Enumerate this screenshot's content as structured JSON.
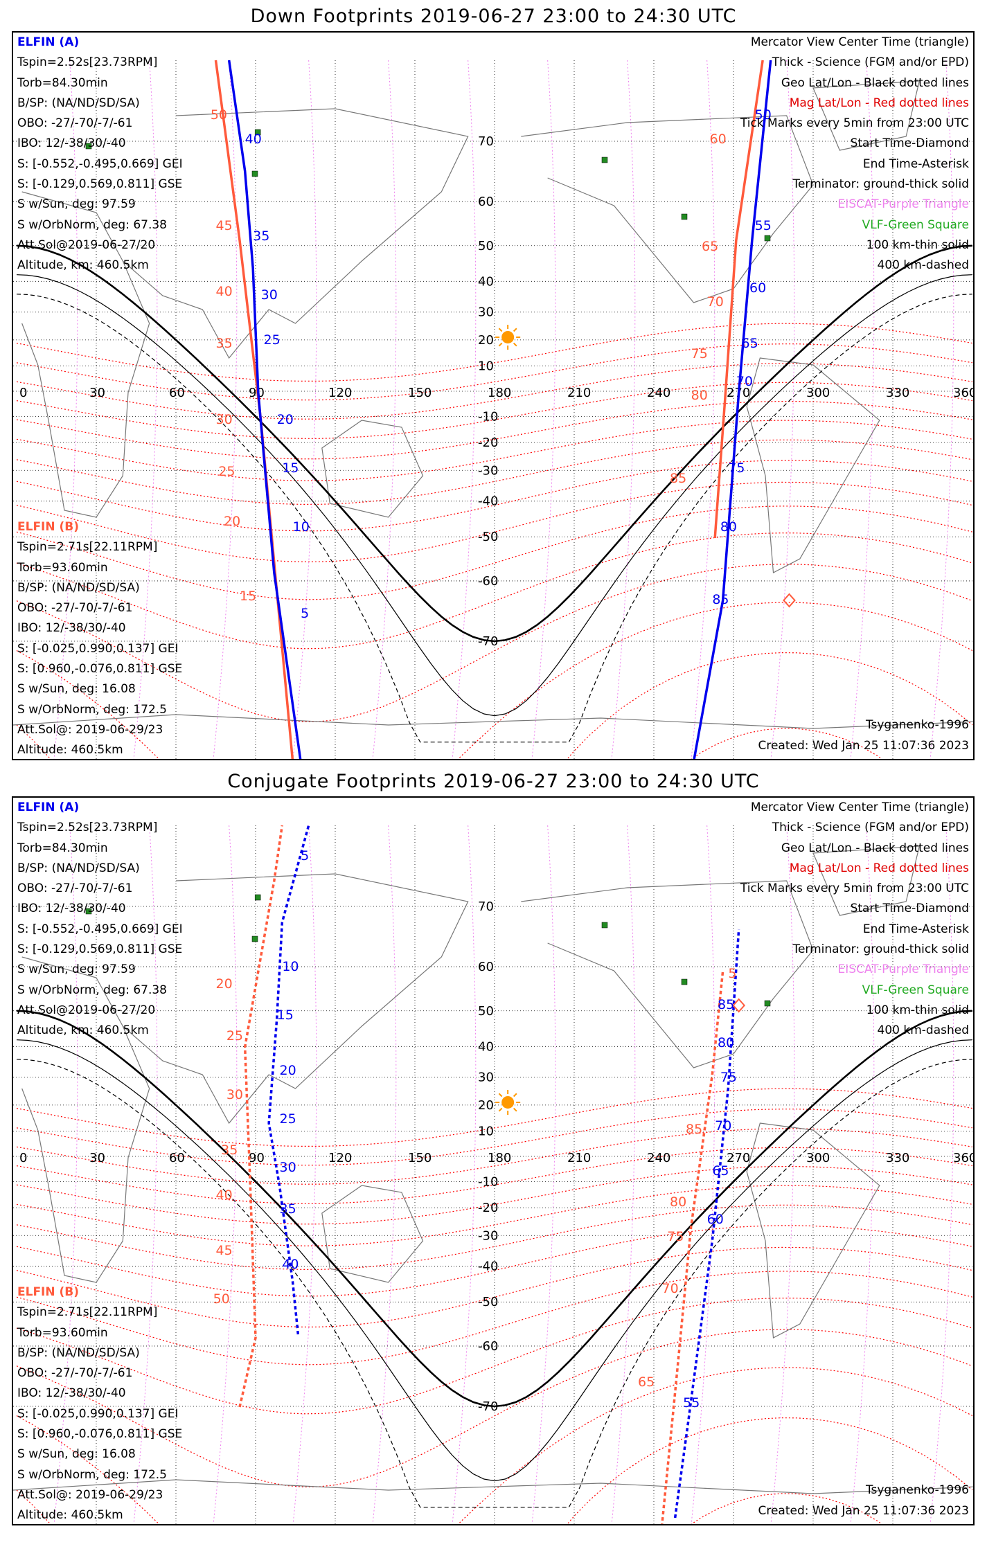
{
  "panels": [
    {
      "title": "Down Footprints 2019-06-27 23:00 to 24:30 UTC",
      "mode": "down"
    },
    {
      "title": "Conjugate Footprints 2019-06-27 23:00 to 24:30 UTC",
      "mode": "conj"
    }
  ],
  "elfin_a": {
    "name": "ELFIN (A)",
    "lines": [
      "Tspin=2.52s[23.73RPM]",
      "Torb=84.30min",
      "B/SP: (NA/ND/SD/SA)",
      "OBO: -27/-70/-7/-61",
      "IBO: 12/-38/30/-40",
      "S: [-0.552,-0.495,0.669] GEI",
      "S: [-0.129,0.569,0.811] GSE",
      "S w/Sun, deg: 97.59",
      "S w/OrbNorm, deg: 67.38",
      "Att.Sol@2019-06-27/20",
      "Altitude, km: 460.5km"
    ]
  },
  "elfin_b": {
    "name": "ELFIN (B)",
    "lines": [
      "Tspin=2.71s[22.11RPM]",
      "Torb=93.60min",
      "B/SP: (NA/ND/SD/SA)",
      "OBO: -27/-70/-7/-61",
      "IBO: 12/-38/30/-40",
      "S: [-0.025,0.990,0.137] GEI",
      "S: [0.960,-0.076,0.811] GSE",
      "S w/Sun, deg: 16.08",
      "S w/OrbNorm, deg: 172.5",
      "Att.Sol@: 2019-06-29/23",
      "Altitude: 460.5km"
    ]
  },
  "legend": {
    "l1": "Mercator View Center Time (triangle)",
    "l2": "Thick - Science (FGM and/or EPD)",
    "l3": "Geo Lat/Lon - Black dotted lines",
    "l4": "Mag Lat/Lon - Red dotted lines",
    "l5": "Tick Marks every 5min from 23:00 UTC",
    "l6": "Start Time-Diamond",
    "l7": "End Time-Asterisk",
    "l8": "Terminator: ground-thick solid",
    "l9": "EISCAT-Purple Triangle",
    "l10": "VLF-Green Square",
    "l11": "100 km-thin solid",
    "l12": "400 km-dashed"
  },
  "model": "Tsyganenko-1996",
  "created": "Created: Wed Jan 25 11:07:36 2023",
  "lon_labels": [
    "0",
    "30",
    "60",
    "90",
    "120",
    "150",
    "180",
    "210",
    "240",
    "270",
    "300",
    "330",
    "360"
  ],
  "lat_labels": [
    "70",
    "60",
    "50",
    "40",
    "30",
    "20",
    "10",
    "-10",
    "-20",
    "-30",
    "-40",
    "-50",
    "-60",
    "-70"
  ],
  "colors": {
    "elfin_a": "#0000ee",
    "elfin_b": "#ff5a3c",
    "mag_grid": "#ff0000",
    "geo_grid": "#000000",
    "eiscat": "#ee82ee",
    "vlf": "#228b22",
    "sun": "#ff9900"
  },
  "down_ticks_a": [
    "40",
    "35",
    "30",
    "25",
    "20",
    "15",
    "10",
    "5",
    "50",
    "55",
    "60",
    "65",
    "70",
    "75",
    "80",
    "85"
  ],
  "down_ticks_b": [
    "50",
    "45",
    "40",
    "35",
    "30",
    "25",
    "20",
    "15",
    "60",
    "65",
    "70",
    "75",
    "80",
    "85"
  ],
  "conj_ticks_a": [
    "10",
    "15",
    "20",
    "25",
    "30",
    "35",
    "40",
    "5",
    "85",
    "80",
    "75",
    "70",
    "65",
    "60",
    "55"
  ],
  "conj_ticks_b": [
    "20",
    "25",
    "30",
    "35",
    "40",
    "45",
    "50",
    "5",
    "85",
    "80",
    "75",
    "70",
    "65"
  ]
}
